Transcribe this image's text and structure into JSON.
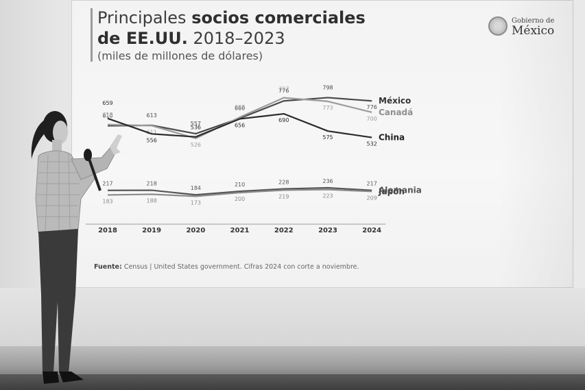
{
  "slide": {
    "title_regular": "Principales",
    "title_bold": "socios comerciales",
    "title_line2_bold": "de EE.UU.",
    "title_line2_regular": "2018–2023",
    "subtitle": "(miles de millones de dólares)",
    "logo_small": "Gobierno de",
    "logo_big": "México",
    "source_label": "Fuente:",
    "source_text": "Census | United States government. Cifras 2024 con corte a noviembre."
  },
  "chart_data": {
    "type": "line",
    "categories": [
      "2018",
      "2019",
      "2020",
      "2021",
      "2022",
      "2023",
      "2024"
    ],
    "series": [
      {
        "name": "México",
        "color": "#4a4a4a",
        "values": [
          610,
          613,
          557,
          660,
          776,
          798,
          776
        ],
        "labels": [
          "610",
          "613",
          "557",
          "660",
          "776",
          "798",
          "776"
        ]
      },
      {
        "name": "Canadá",
        "color": "#9b9b9b",
        "values": [
          618,
          611,
          526,
          667,
          797,
          773,
          700
        ],
        "labels": [
          "618",
          "611",
          "526",
          "667",
          "797",
          "773",
          "700"
        ]
      },
      {
        "name": "China",
        "color": "#2a2a2a",
        "values": [
          659,
          556,
          536,
          656,
          690,
          575,
          532
        ],
        "labels": [
          "659",
          "556",
          "536",
          "656",
          "690",
          "575",
          "532"
        ]
      },
      {
        "name": "Alemania",
        "color": "#555555",
        "values": [
          217,
          218,
          184,
          210,
          228,
          236,
          217
        ],
        "labels": [
          "217",
          "218",
          "184",
          "210",
          "228",
          "236",
          "217"
        ]
      },
      {
        "name": "Japón",
        "color": "#8a8a8a",
        "values": [
          183,
          188,
          173,
          200,
          219,
          223,
          209
        ],
        "labels": [
          "183",
          "188",
          "173",
          "200",
          "219",
          "223",
          "209"
        ]
      }
    ]
  }
}
